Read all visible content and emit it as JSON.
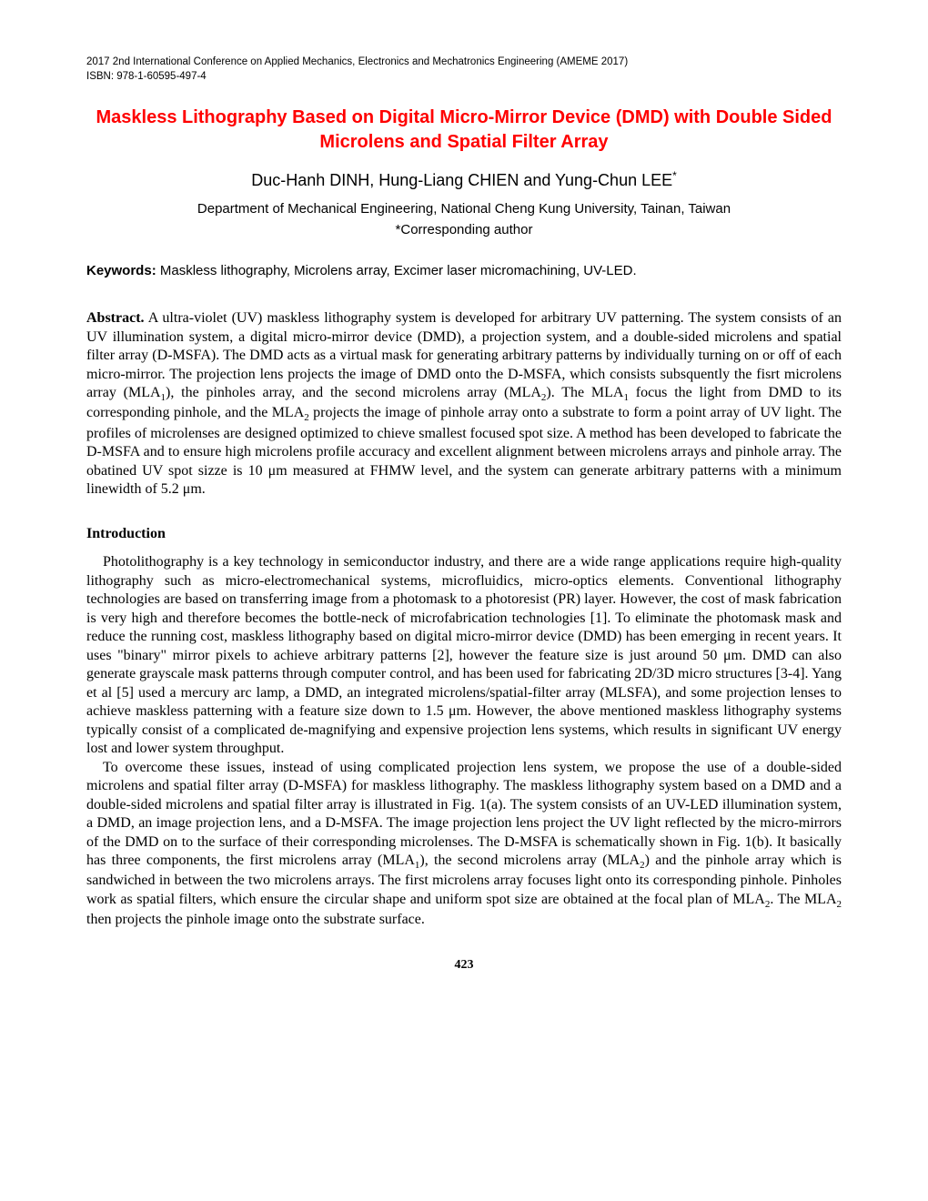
{
  "header": {
    "conference": "2017 2nd International Conference on Applied Mechanics, Electronics and Mechatronics Engineering (AMEME 2017)",
    "isbn": "ISBN: 978-1-60595-497-4"
  },
  "title": "Maskless Lithography Based on Digital Micro-Mirror Device (DMD) with Double Sided Microlens and Spatial Filter Array",
  "authors": "Duc-Hanh DINH, Hung-Liang CHIEN and Yung-Chun LEE",
  "authorSuperscript": "*",
  "affiliation": "Department of Mechanical Engineering, National Cheng Kung University, Tainan, Taiwan",
  "corresponding": "*Corresponding author",
  "keywords": {
    "label": "Keywords:",
    "text": " Maskless lithography, Microlens array, Excimer laser micromachining, UV-LED."
  },
  "abstract": {
    "label": "Abstract.",
    "text_before_sub1": " A ultra-violet (UV) maskless lithography system is developed for arbitrary UV patterning. The system consists of an UV illumination system, a digital micro-mirror device (DMD), a projection system, and a double-sided microlens and spatial filter array (D-MSFA). The DMD acts as a virtual mask for generating arbitrary patterns by individually turning on or off of each micro-mirror. The projection lens projects the image of DMD onto the D-MSFA, which consists subsquently the fisrt microlens array (MLA",
    "sub1": "1",
    "text_mid1": "), the pinholes array, and the second microlens array (MLA",
    "sub2": "2",
    "text_mid2": "). The MLA",
    "sub3": "1",
    "text_mid3": " focus the light from DMD to its corresponding pinhole, and the MLA",
    "sub4": "2",
    "text_after": " projects the image of pinhole array onto a substrate to form a point array of UV light. The profiles of microlenses are designed optimized to chieve smallest focused spot size. A method has been developed to fabricate the D-MSFA and to ensure high microlens profile accuracy and excellent alignment between microlens arrays and pinhole array. The obatined UV spot sizze is 10 μm measured at FHMW level, and the system can generate arbitrary patterns with a minimum linewidth of 5.2 μm."
  },
  "introduction": {
    "heading": "Introduction",
    "para1": "Photolithography is a key technology in semiconductor industry, and there are a wide range applications require high-quality lithography such as micro-electromechanical systems, microfluidics, micro-optics elements. Conventional lithography technologies are based on transferring image from a photomask to a photoresist (PR) layer. However, the cost of mask fabrication is very high and therefore becomes the bottle-neck of microfabrication technologies [1]. To eliminate the photomask mask and reduce the running cost, maskless lithography based on digital micro-mirror device (DMD) has been emerging in recent years. It uses \"binary\" mirror pixels to achieve arbitrary patterns [2], however the feature size is just around 50 μm. DMD can also generate grayscale mask patterns through computer control, and has been used for fabricating 2D/3D micro structures [3-4]. Yang et al [5] used a mercury arc lamp, a DMD, an integrated microlens/spatial-filter array (MLSFA), and some projection lenses to achieve maskless patterning with a feature size down to 1.5 μm. However, the above mentioned maskless lithography systems typically consist of a complicated de-magnifying and expensive projection lens systems, which results in significant UV energy lost and lower system throughput.",
    "para2_part1": "To overcome these issues, instead of using complicated projection lens system, we propose the use of a double-sided microlens and spatial filter array (D-MSFA) for maskless lithography. The maskless lithography system based on a DMD and a double-sided microlens and spatial filter array is illustrated in Fig. 1(a). The system consists of an UV-LED illumination system, a DMD, an image projection lens, and a D-MSFA. The image projection lens project the UV light reflected by the micro-mirrors of the DMD on to the surface of their corresponding microlenses. The D-MSFA is schematically shown in Fig. 1(b). It basically has three components, the first microlens array (MLA",
    "para2_sub1": "1",
    "para2_part2": "), the second microlens array (MLA",
    "para2_sub2": "2",
    "para2_part3": ") and the pinhole array which is sandwiched in between the two microlens arrays. The first microlens array focuses light onto its corresponding pinhole. Pinholes work as spatial filters, which ensure the circular shape and uniform spot size are obtained at the focal plan of MLA",
    "para2_sub3": "2",
    "para2_part4": ". The MLA",
    "para2_sub4": "2",
    "para2_part5": " then projects the pinhole image onto the substrate surface."
  },
  "pageNumber": "423",
  "colors": {
    "titleColor": "#ff0000",
    "textColor": "#000000",
    "backgroundColor": "#ffffff"
  }
}
